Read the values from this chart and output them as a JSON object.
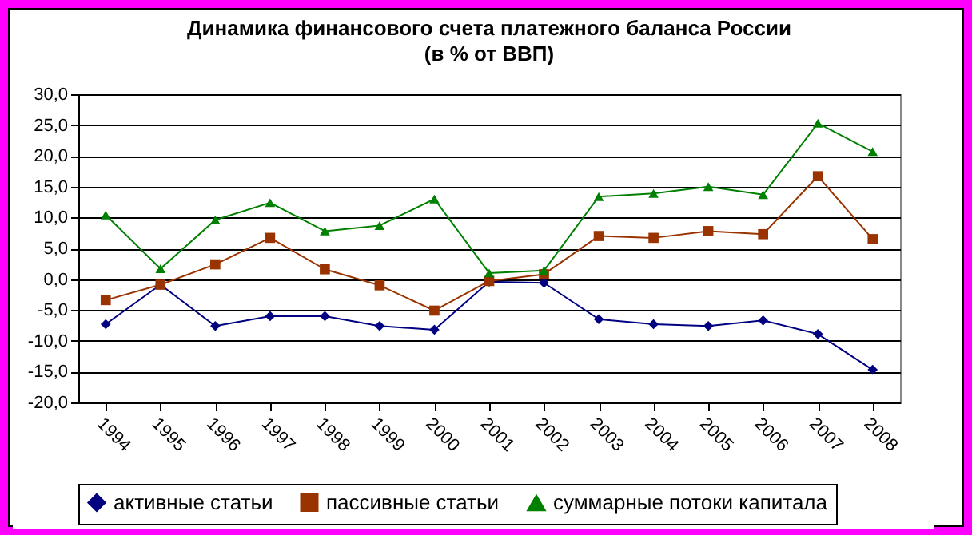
{
  "chart_data": {
    "type": "line",
    "title": "Динамика финансового счета платежного баланса России",
    "subtitle": "(в % от ВВП)",
    "categories": [
      "1994",
      "1995",
      "1996",
      "1997",
      "1998",
      "1999",
      "2000",
      "2001",
      "2002",
      "2003",
      "2004",
      "2005",
      "2006",
      "2007",
      "2008"
    ],
    "series": [
      {
        "name": "активные статьи",
        "color": "#000080",
        "marker": "diamond",
        "values": [
          -7.3,
          -0.9,
          -7.6,
          -6.0,
          -6.0,
          -7.6,
          -8.2,
          -0.4,
          -0.6,
          -6.5,
          -7.3,
          -7.6,
          -6.7,
          -8.9,
          -14.7
        ]
      },
      {
        "name": "пассивные статьи",
        "color": "#993300",
        "marker": "square",
        "values": [
          -3.4,
          -0.9,
          2.4,
          6.7,
          1.6,
          -1.0,
          -5.1,
          -0.3,
          0.8,
          7.0,
          6.7,
          7.8,
          7.3,
          16.7,
          6.5
        ]
      },
      {
        "name": "суммарные потоки капитала",
        "color": "#008000",
        "marker": "triangle",
        "values": [
          10.4,
          1.7,
          9.6,
          12.4,
          7.8,
          8.7,
          13.0,
          1.0,
          1.4,
          13.4,
          13.9,
          15.0,
          13.7,
          25.3,
          20.7
        ]
      }
    ],
    "ylim": [
      -20,
      30
    ],
    "yticks": [
      {
        "value": -20,
        "label": "-20,0"
      },
      {
        "value": -15,
        "label": "-15,0"
      },
      {
        "value": -10,
        "label": "-10,0"
      },
      {
        "value": -5,
        "label": "-5,0"
      },
      {
        "value": 0,
        "label": "0,0"
      },
      {
        "value": 5,
        "label": "5,0"
      },
      {
        "value": 10,
        "label": "10,0"
      },
      {
        "value": 15,
        "label": "15,0"
      },
      {
        "value": 20,
        "label": "20,0"
      },
      {
        "value": 25,
        "label": "25,0"
      },
      {
        "value": 30,
        "label": "30,0"
      }
    ],
    "grid": "y",
    "legend": "bottom",
    "line_style": "solid"
  }
}
